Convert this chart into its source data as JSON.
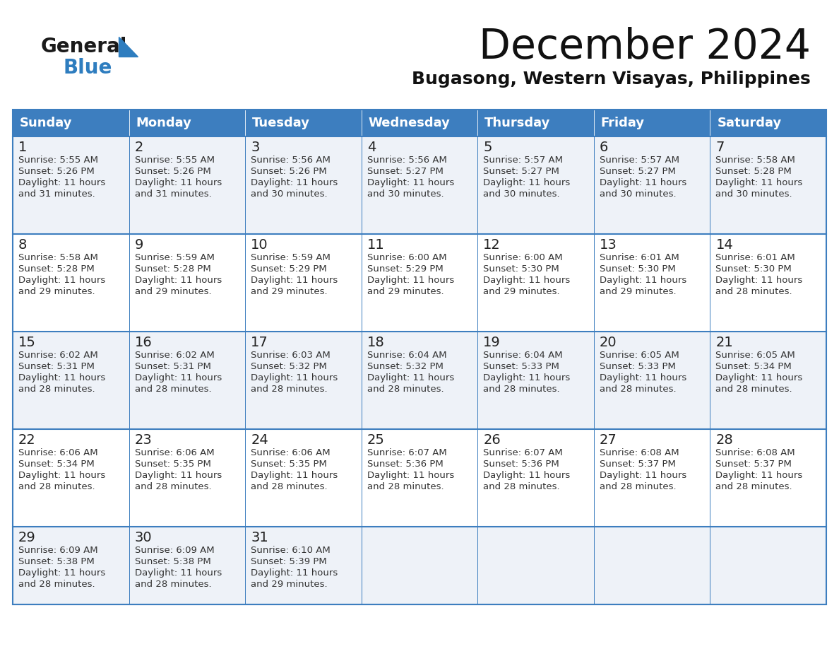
{
  "title": "December 2024",
  "subtitle": "Bugasong, Western Visayas, Philippines",
  "header_color": "#3d7ebf",
  "header_text_color": "#ffffff",
  "border_color": "#3d7ebf",
  "day_names": [
    "Sunday",
    "Monday",
    "Tuesday",
    "Wednesday",
    "Thursday",
    "Friday",
    "Saturday"
  ],
  "calendar_data": [
    [
      {
        "day": "1",
        "sunrise": "5:55 AM",
        "sunset": "5:26 PM",
        "dl1": "Daylight: 11 hours",
        "dl2": "and 31 minutes."
      },
      {
        "day": "2",
        "sunrise": "5:55 AM",
        "sunset": "5:26 PM",
        "dl1": "Daylight: 11 hours",
        "dl2": "and 31 minutes."
      },
      {
        "day": "3",
        "sunrise": "5:56 AM",
        "sunset": "5:26 PM",
        "dl1": "Daylight: 11 hours",
        "dl2": "and 30 minutes."
      },
      {
        "day": "4",
        "sunrise": "5:56 AM",
        "sunset": "5:27 PM",
        "dl1": "Daylight: 11 hours",
        "dl2": "and 30 minutes."
      },
      {
        "day": "5",
        "sunrise": "5:57 AM",
        "sunset": "5:27 PM",
        "dl1": "Daylight: 11 hours",
        "dl2": "and 30 minutes."
      },
      {
        "day": "6",
        "sunrise": "5:57 AM",
        "sunset": "5:27 PM",
        "dl1": "Daylight: 11 hours",
        "dl2": "and 30 minutes."
      },
      {
        "day": "7",
        "sunrise": "5:58 AM",
        "sunset": "5:28 PM",
        "dl1": "Daylight: 11 hours",
        "dl2": "and 30 minutes."
      }
    ],
    [
      {
        "day": "8",
        "sunrise": "5:58 AM",
        "sunset": "5:28 PM",
        "dl1": "Daylight: 11 hours",
        "dl2": "and 29 minutes."
      },
      {
        "day": "9",
        "sunrise": "5:59 AM",
        "sunset": "5:28 PM",
        "dl1": "Daylight: 11 hours",
        "dl2": "and 29 minutes."
      },
      {
        "day": "10",
        "sunrise": "5:59 AM",
        "sunset": "5:29 PM",
        "dl1": "Daylight: 11 hours",
        "dl2": "and 29 minutes."
      },
      {
        "day": "11",
        "sunrise": "6:00 AM",
        "sunset": "5:29 PM",
        "dl1": "Daylight: 11 hours",
        "dl2": "and 29 minutes."
      },
      {
        "day": "12",
        "sunrise": "6:00 AM",
        "sunset": "5:30 PM",
        "dl1": "Daylight: 11 hours",
        "dl2": "and 29 minutes."
      },
      {
        "day": "13",
        "sunrise": "6:01 AM",
        "sunset": "5:30 PM",
        "dl1": "Daylight: 11 hours",
        "dl2": "and 29 minutes."
      },
      {
        "day": "14",
        "sunrise": "6:01 AM",
        "sunset": "5:30 PM",
        "dl1": "Daylight: 11 hours",
        "dl2": "and 28 minutes."
      }
    ],
    [
      {
        "day": "15",
        "sunrise": "6:02 AM",
        "sunset": "5:31 PM",
        "dl1": "Daylight: 11 hours",
        "dl2": "and 28 minutes."
      },
      {
        "day": "16",
        "sunrise": "6:02 AM",
        "sunset": "5:31 PM",
        "dl1": "Daylight: 11 hours",
        "dl2": "and 28 minutes."
      },
      {
        "day": "17",
        "sunrise": "6:03 AM",
        "sunset": "5:32 PM",
        "dl1": "Daylight: 11 hours",
        "dl2": "and 28 minutes."
      },
      {
        "day": "18",
        "sunrise": "6:04 AM",
        "sunset": "5:32 PM",
        "dl1": "Daylight: 11 hours",
        "dl2": "and 28 minutes."
      },
      {
        "day": "19",
        "sunrise": "6:04 AM",
        "sunset": "5:33 PM",
        "dl1": "Daylight: 11 hours",
        "dl2": "and 28 minutes."
      },
      {
        "day": "20",
        "sunrise": "6:05 AM",
        "sunset": "5:33 PM",
        "dl1": "Daylight: 11 hours",
        "dl2": "and 28 minutes."
      },
      {
        "day": "21",
        "sunrise": "6:05 AM",
        "sunset": "5:34 PM",
        "dl1": "Daylight: 11 hours",
        "dl2": "and 28 minutes."
      }
    ],
    [
      {
        "day": "22",
        "sunrise": "6:06 AM",
        "sunset": "5:34 PM",
        "dl1": "Daylight: 11 hours",
        "dl2": "and 28 minutes."
      },
      {
        "day": "23",
        "sunrise": "6:06 AM",
        "sunset": "5:35 PM",
        "dl1": "Daylight: 11 hours",
        "dl2": "and 28 minutes."
      },
      {
        "day": "24",
        "sunrise": "6:06 AM",
        "sunset": "5:35 PM",
        "dl1": "Daylight: 11 hours",
        "dl2": "and 28 minutes."
      },
      {
        "day": "25",
        "sunrise": "6:07 AM",
        "sunset": "5:36 PM",
        "dl1": "Daylight: 11 hours",
        "dl2": "and 28 minutes."
      },
      {
        "day": "26",
        "sunrise": "6:07 AM",
        "sunset": "5:36 PM",
        "dl1": "Daylight: 11 hours",
        "dl2": "and 28 minutes."
      },
      {
        "day": "27",
        "sunrise": "6:08 AM",
        "sunset": "5:37 PM",
        "dl1": "Daylight: 11 hours",
        "dl2": "and 28 minutes."
      },
      {
        "day": "28",
        "sunrise": "6:08 AM",
        "sunset": "5:37 PM",
        "dl1": "Daylight: 11 hours",
        "dl2": "and 28 minutes."
      }
    ],
    [
      {
        "day": "29",
        "sunrise": "6:09 AM",
        "sunset": "5:38 PM",
        "dl1": "Daylight: 11 hours",
        "dl2": "and 28 minutes."
      },
      {
        "day": "30",
        "sunrise": "6:09 AM",
        "sunset": "5:38 PM",
        "dl1": "Daylight: 11 hours",
        "dl2": "and 28 minutes."
      },
      {
        "day": "31",
        "sunrise": "6:10 AM",
        "sunset": "5:39 PM",
        "dl1": "Daylight: 11 hours",
        "dl2": "and 29 minutes."
      },
      null,
      null,
      null,
      null
    ]
  ],
  "row_bg_colors": [
    "#eef2f8",
    "#ffffff",
    "#eef2f8",
    "#ffffff",
    "#eef2f8"
  ],
  "logo_color_general": "#1a1a1a",
  "logo_color_blue": "#2e7dbf",
  "logo_triangle_color": "#2e7dbf",
  "title_fontsize": 42,
  "subtitle_fontsize": 18,
  "header_fontsize": 13,
  "day_num_fontsize": 14,
  "cell_text_fontsize": 9.5
}
